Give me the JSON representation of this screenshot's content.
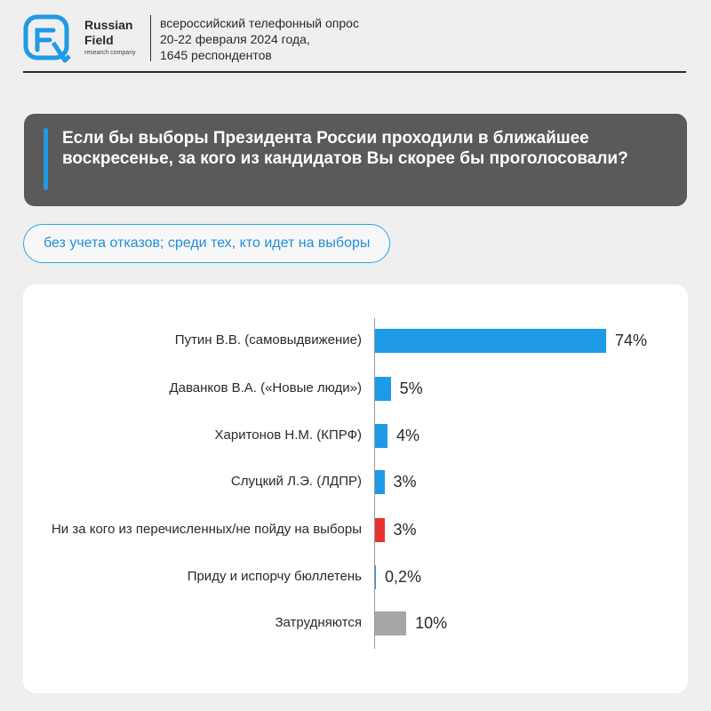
{
  "header": {
    "brand_line1": "Russian",
    "brand_line2": "Field",
    "brand_line3": "research company",
    "survey_line1": "всероссийский телефонный опрос",
    "survey_line2": "20-22 февраля 2024 года,",
    "survey_line3": "1645 респондентов"
  },
  "question": {
    "text": "Если бы выборы Президента России проходили в ближайшее воскресенье, за кого из кандидатов Вы скорее бы проголосовали?"
  },
  "note": "без учета отказов; среди тех, кто идет на выборы",
  "colors": {
    "blue": "#1f9ae6",
    "red": "#e8302f",
    "gray": "#a6a6a6"
  },
  "chart_data": {
    "type": "bar",
    "orientation": "horizontal",
    "categories": [
      "Путин В.В. (самовыдвижение)",
      "Даванков В.А. («Новые люди»)",
      "Харитонов Н.М. (КПРФ)",
      "Слуцкий Л.Э. (ЛДПР)",
      "Ни за кого из перечисленных/не пойду на выборы",
      "Приду и испорчу бюллетень",
      "Затрудняются"
    ],
    "values": [
      74,
      5,
      4,
      3,
      3,
      0.2,
      10
    ],
    "value_labels": [
      "74%",
      "5%",
      "4%",
      "3%",
      "3%",
      "0,2%",
      "10%"
    ],
    "bar_colors": [
      "#1f9ae6",
      "#1f9ae6",
      "#1f9ae6",
      "#1f9ae6",
      "#e8302f",
      "#1f9ae6",
      "#a6a6a6"
    ],
    "xlim": [
      0,
      74
    ]
  }
}
